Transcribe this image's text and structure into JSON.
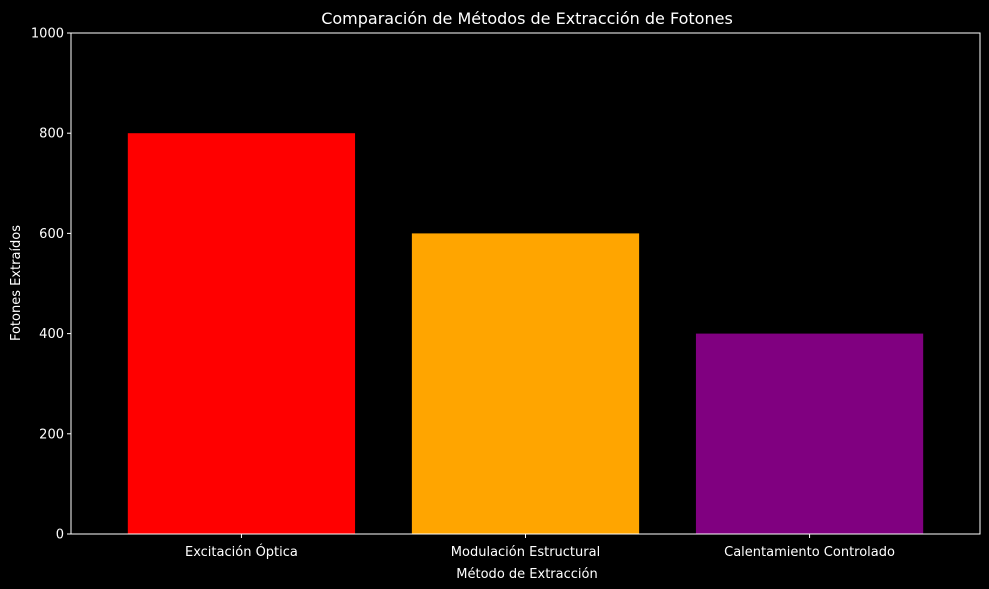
{
  "chart_data": {
    "type": "bar",
    "title": "Comparación de Métodos de Extracción de Fotones",
    "xlabel": "Método de Extracción",
    "ylabel": "Fotones Extraídos",
    "categories": [
      "Excitación Óptica",
      "Modulación Estructural",
      "Calentamiento Controlado"
    ],
    "values": [
      800,
      600,
      400
    ],
    "colors": [
      "#ff0000",
      "#ffa500",
      "#800080"
    ],
    "ylim": [
      0,
      1000
    ],
    "yticks": [
      0,
      200,
      400,
      600,
      800,
      1000
    ],
    "background": "#000000",
    "axis_color": "#ffffff",
    "grid": false,
    "legend": "none"
  }
}
